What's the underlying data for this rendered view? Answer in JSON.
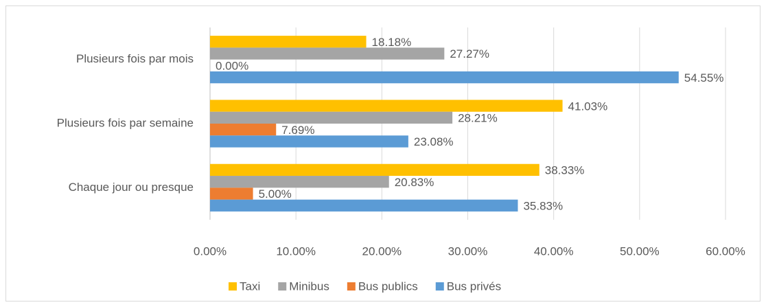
{
  "chart_data": {
    "type": "hbar",
    "categories": [
      "Chaque jour ou presque",
      "Plusieurs fois par semaine",
      "Plusieurs fois par mois"
    ],
    "series": [
      {
        "name": "Taxi",
        "color": "#FFC000",
        "values": [
          38.33,
          41.03,
          18.18
        ],
        "value_labels": [
          "38.33%",
          "41.03%",
          "18.18%"
        ]
      },
      {
        "name": "Minibus",
        "color": "#A5A5A5",
        "values": [
          20.83,
          28.21,
          27.27
        ],
        "value_labels": [
          "20.83%",
          "28.21%",
          "27.27%"
        ]
      },
      {
        "name": "Bus publics",
        "color": "#ED7D31",
        "values": [
          5.0,
          7.69,
          0.0
        ],
        "value_labels": [
          "5.00%",
          "7.69%",
          "0.00%"
        ]
      },
      {
        "name": "Bus privés",
        "color": "#5B9BD5",
        "values": [
          35.83,
          23.08,
          54.55
        ],
        "value_labels": [
          "35.83%",
          "23.08%",
          "54.55%"
        ]
      }
    ],
    "xlim": [
      0,
      60
    ],
    "xticks": [
      {
        "value": 0,
        "label": "0.00%"
      },
      {
        "value": 10,
        "label": "10.00%"
      },
      {
        "value": 20,
        "label": "20.00%"
      },
      {
        "value": 30,
        "label": "30.00%"
      },
      {
        "value": 40,
        "label": "40.00%"
      },
      {
        "value": 50,
        "label": "50.00%"
      },
      {
        "value": 60,
        "label": "60.00%"
      }
    ],
    "grid": true,
    "legend": "bottom"
  }
}
